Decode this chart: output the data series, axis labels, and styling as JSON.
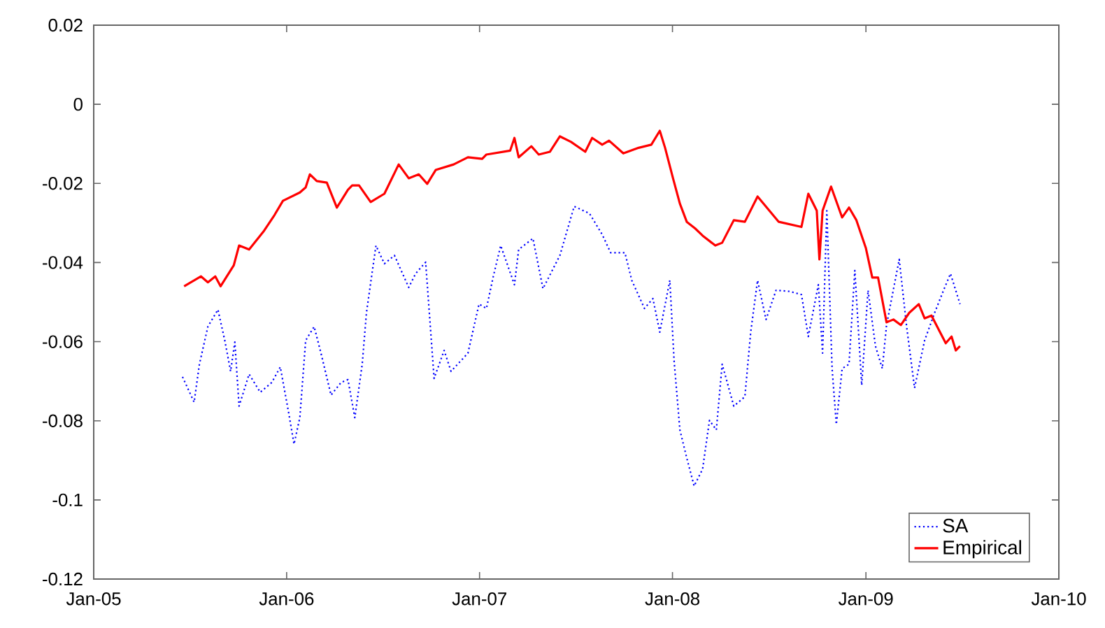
{
  "chart_data": {
    "type": "line",
    "xlim": [
      "2005-01-01",
      "2010-01-01"
    ],
    "xticks": [
      {
        "value": "2005-01-01",
        "label": "Jan-05"
      },
      {
        "value": "2006-01-01",
        "label": "Jan-06"
      },
      {
        "value": "2007-01-01",
        "label": "Jan-07"
      },
      {
        "value": "2008-01-01",
        "label": "Jan-08"
      },
      {
        "value": "2009-01-01",
        "label": "Jan-09"
      },
      {
        "value": "2010-01-01",
        "label": "Jan-10"
      }
    ],
    "ylim": [
      -0.12,
      0.02
    ],
    "yticks": [
      -0.12,
      -0.1,
      -0.08,
      -0.06,
      -0.04,
      -0.02,
      0,
      0.02
    ],
    "legend": "bottom right",
    "series": [
      {
        "name": "SA",
        "color": "#0000ff",
        "line_style": "dotted",
        "x": [
          "2005-06-18",
          "2005-07-10",
          "2005-07-20",
          "2005-08-05",
          "2005-08-24",
          "2005-09-06",
          "2005-09-17",
          "2005-09-25",
          "2005-10-03",
          "2005-10-22",
          "2005-11-12",
          "2005-12-04",
          "2005-12-20",
          "2006-01-05",
          "2006-01-15",
          "2006-01-26",
          "2006-02-06",
          "2006-02-22",
          "2006-03-07",
          "2006-03-26",
          "2006-04-14",
          "2006-04-27",
          "2006-05-10",
          "2006-05-24",
          "2006-06-01",
          "2006-06-19",
          "2006-07-05",
          "2006-07-24",
          "2006-08-20",
          "2006-09-02",
          "2006-09-21",
          "2006-10-07",
          "2006-10-26",
          "2006-11-08",
          "2006-12-10",
          "2006-12-31",
          "2007-01-14",
          "2007-01-27",
          "2007-02-10",
          "2007-03-08",
          "2007-03-16",
          "2007-04-12",
          "2007-05-01",
          "2007-06-02",
          "2007-06-29",
          "2007-07-28",
          "2007-08-21",
          "2007-09-06",
          "2007-10-03",
          "2007-10-16",
          "2007-11-09",
          "2007-11-25",
          "2007-12-08",
          "2007-12-27",
          "2008-01-04",
          "2008-01-15",
          "2008-01-28",
          "2008-02-11",
          "2008-02-27",
          "2008-03-11",
          "2008-03-24",
          "2008-04-04",
          "2008-04-26",
          "2008-05-17",
          "2008-05-28",
          "2008-06-10",
          "2008-06-26",
          "2008-07-15",
          "2008-08-10",
          "2008-09-01",
          "2008-09-14",
          "2008-10-03",
          "2008-10-11",
          "2008-10-19",
          "2008-10-29",
          "2008-11-06",
          "2008-11-17",
          "2008-11-30",
          "2008-12-11",
          "2008-12-24",
          "2009-01-05",
          "2009-01-19",
          "2009-02-01",
          "2009-02-09",
          "2009-03-05",
          "2009-03-19",
          "2009-04-03",
          "2009-04-22",
          "2009-05-11",
          "2009-05-27",
          "2009-06-10",
          "2009-06-28"
        ],
        "values": [
          -0.0689,
          -0.0753,
          -0.0657,
          -0.0562,
          -0.0519,
          -0.0597,
          -0.0675,
          -0.0601,
          -0.0763,
          -0.0682,
          -0.0728,
          -0.0703,
          -0.0664,
          -0.0781,
          -0.0859,
          -0.0792,
          -0.0597,
          -0.0562,
          -0.0629,
          -0.0735,
          -0.0703,
          -0.0696,
          -0.0792,
          -0.0657,
          -0.0527,
          -0.0357,
          -0.0403,
          -0.0382,
          -0.0463,
          -0.0428,
          -0.0399,
          -0.0693,
          -0.0622,
          -0.0675,
          -0.0629,
          -0.0505,
          -0.0516,
          -0.0435,
          -0.0357,
          -0.0456,
          -0.0367,
          -0.0339,
          -0.0466,
          -0.0382,
          -0.0258,
          -0.0276,
          -0.0329,
          -0.0375,
          -0.0375,
          -0.0445,
          -0.0516,
          -0.0491,
          -0.0576,
          -0.0445,
          -0.0647,
          -0.0823,
          -0.0894,
          -0.0965,
          -0.0922,
          -0.0799,
          -0.0823,
          -0.0657,
          -0.0763,
          -0.0739,
          -0.0576,
          -0.0445,
          -0.0544,
          -0.047,
          -0.0473,
          -0.0481,
          -0.0587,
          -0.0456,
          -0.0629,
          -0.0269,
          -0.0668,
          -0.0809,
          -0.0668,
          -0.0657,
          -0.042,
          -0.071,
          -0.047,
          -0.0611,
          -0.0668,
          -0.0558,
          -0.0392,
          -0.0562,
          -0.0717,
          -0.0597,
          -0.0527,
          -0.0473,
          -0.0428,
          -0.0505
        ]
      },
      {
        "name": "Empirical",
        "color": "#ff0000",
        "line_style": "solid",
        "x": [
          "2005-06-21",
          "2005-07-23",
          "2005-08-05",
          "2005-08-19",
          "2005-08-29",
          "2005-09-23",
          "2005-10-03",
          "2005-10-22",
          "2005-11-18",
          "2005-12-09",
          "2005-12-25",
          "2006-01-26",
          "2006-02-06",
          "2006-02-14",
          "2006-02-27",
          "2006-03-18",
          "2006-04-06",
          "2006-04-27",
          "2006-05-05",
          "2006-05-18",
          "2006-06-09",
          "2006-07-05",
          "2006-08-01",
          "2006-08-20",
          "2006-09-08",
          "2006-09-24",
          "2006-10-10",
          "2006-11-13",
          "2006-12-10",
          "2007-01-06",
          "2007-01-14",
          "2007-02-28",
          "2007-03-08",
          "2007-03-16",
          "2007-04-09",
          "2007-04-23",
          "2007-05-14",
          "2007-06-02",
          "2007-06-23",
          "2007-07-20",
          "2007-08-02",
          "2007-08-21",
          "2007-09-03",
          "2007-09-30",
          "2007-10-29",
          "2007-11-22",
          "2007-12-08",
          "2007-12-18",
          "2008-01-02",
          "2008-01-15",
          "2008-01-28",
          "2008-02-13",
          "2008-02-27",
          "2008-03-22",
          "2008-04-04",
          "2008-04-26",
          "2008-05-17",
          "2008-06-10",
          "2008-07-20",
          "2008-09-01",
          "2008-09-14",
          "2008-09-30",
          "2008-10-05",
          "2008-10-11",
          "2008-10-27",
          "2008-11-17",
          "2008-11-30",
          "2008-12-14",
          "2009-01-01",
          "2009-01-13",
          "2009-01-24",
          "2009-02-09",
          "2009-02-22",
          "2009-03-08",
          "2009-03-24",
          "2009-04-11",
          "2009-04-22",
          "2009-05-05",
          "2009-06-01",
          "2009-06-12",
          "2009-06-20",
          "2009-06-28"
        ],
        "values": [
          -0.046,
          -0.0435,
          -0.045,
          -0.0435,
          -0.046,
          -0.0407,
          -0.0357,
          -0.0367,
          -0.0322,
          -0.028,
          -0.0244,
          -0.0223,
          -0.021,
          -0.0177,
          -0.0194,
          -0.0198,
          -0.0261,
          -0.0216,
          -0.0205,
          -0.0205,
          -0.0247,
          -0.0226,
          -0.0152,
          -0.0187,
          -0.0177,
          -0.0201,
          -0.0166,
          -0.0152,
          -0.0134,
          -0.0138,
          -0.0127,
          -0.0117,
          -0.0085,
          -0.0134,
          -0.0106,
          -0.0127,
          -0.012,
          -0.0081,
          -0.0095,
          -0.012,
          -0.0085,
          -0.0102,
          -0.0092,
          -0.0124,
          -0.011,
          -0.0102,
          -0.0067,
          -0.011,
          -0.0187,
          -0.0251,
          -0.0297,
          -0.0314,
          -0.0332,
          -0.0357,
          -0.035,
          -0.0293,
          -0.0297,
          -0.0233,
          -0.0297,
          -0.031,
          -0.0226,
          -0.0269,
          -0.0392,
          -0.0269,
          -0.0208,
          -0.0286,
          -0.0261,
          -0.0293,
          -0.0364,
          -0.0438,
          -0.0438,
          -0.0551,
          -0.0544,
          -0.0558,
          -0.0527,
          -0.0505,
          -0.0541,
          -0.0534,
          -0.0604,
          -0.0587,
          -0.0622,
          -0.0611
        ]
      }
    ]
  }
}
